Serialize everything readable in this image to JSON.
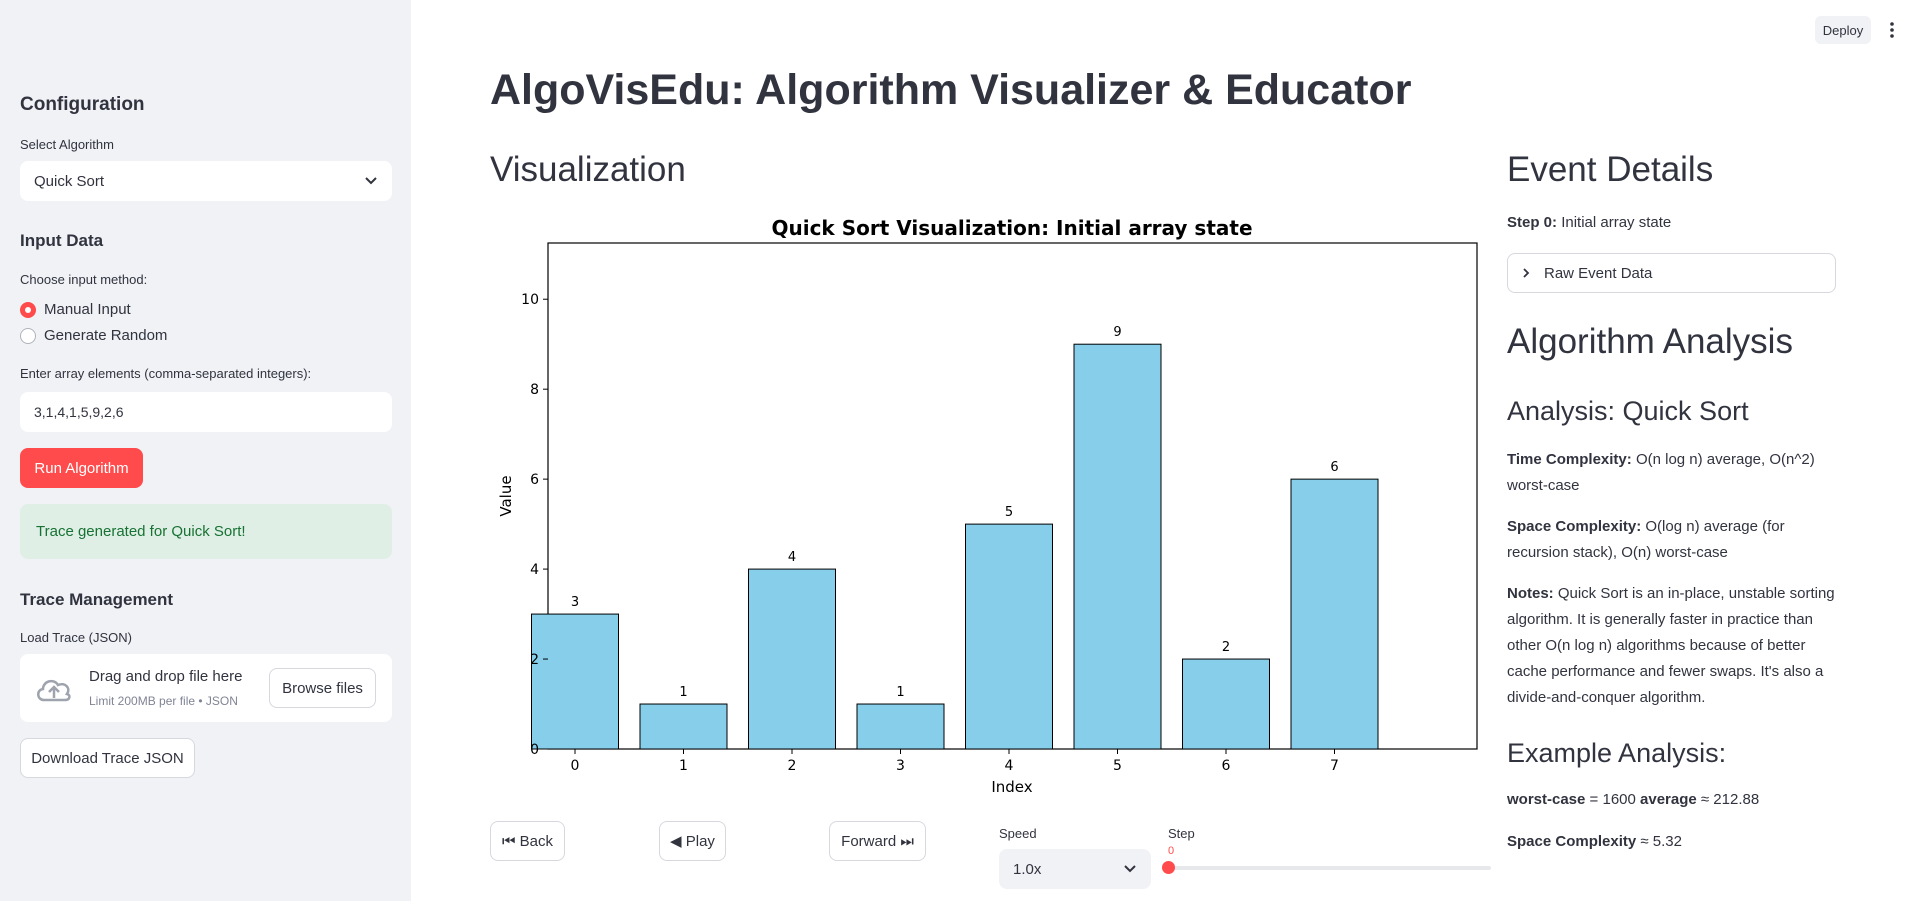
{
  "header": {
    "deploy_label": "Deploy",
    "menu_icon": "more-vert-icon"
  },
  "sidebar": {
    "config_title": "Configuration",
    "algo_label": "Select Algorithm",
    "algo_value": "Quick Sort",
    "input_title": "Input Data",
    "method_label": "Choose input method:",
    "method_options": [
      "Manual Input",
      "Generate Random"
    ],
    "method_selected": "Manual Input",
    "array_label": "Enter array elements (comma-separated integers):",
    "array_value": "3,1,4,1,5,9,2,6",
    "run_label": "Run Algorithm",
    "success_msg": "Trace generated for Quick Sort!",
    "trace_title": "Trace Management",
    "load_label": "Load Trace (JSON)",
    "drop_title": "Drag and drop file here",
    "drop_limit": "Limit 200MB per file • JSON",
    "browse_label": "Browse files",
    "download_label": "Download Trace JSON"
  },
  "main": {
    "title": "AlgoVisEdu: Algorithm Visualizer & Educator",
    "viz_title": "Visualization",
    "controls": {
      "back_label": "⏮ Back",
      "play_label": "◀ Play",
      "forward_label": "Forward ⏭",
      "speed_label": "Speed",
      "speed_value": "1.0x",
      "step_label": "Step",
      "step_value": "0",
      "step_fraction": 0
    }
  },
  "right": {
    "event_title": "Event Details",
    "step_bold": "Step 0:",
    "step_text": "Initial array state",
    "raw_label": "Raw Event Data",
    "analysis_title": "Algorithm Analysis",
    "analysis_sub": "Analysis: Quick Sort",
    "time_bold": "Time Complexity:",
    "time_text": "O(n log n) average, O(n^2) worst-case",
    "space_bold": "Space Complexity:",
    "space_text": "O(log n) average (for recursion stack), O(n) worst-case",
    "notes_bold": "Notes:",
    "notes_text": "Quick Sort is an in-place, unstable sorting algorithm. It is generally faster in practice than other O(n log n) algorithms because of better cache performance and fewer swaps. It's also a divide-and-conquer algorithm.",
    "example_title": "Example Analysis:",
    "ex1_bold1": "worst-case",
    "ex1_text1": "= 1600",
    "ex1_bold2": "average",
    "ex1_text2": "≈ 212.88",
    "ex2_bold": "Space Complexity",
    "ex2_text": "≈ 5.32"
  },
  "chart_data": {
    "type": "bar",
    "title": "Quick Sort Visualization: Initial array state",
    "xlabel": "Index",
    "ylabel": "Value",
    "categories": [
      "0",
      "1",
      "2",
      "3",
      "4",
      "5",
      "6",
      "7"
    ],
    "values": [
      3,
      1,
      4,
      1,
      5,
      9,
      2,
      6
    ],
    "data_labels": [
      "3",
      "1",
      "4",
      "1",
      "5",
      "9",
      "2",
      "6"
    ],
    "yticks": [
      "0",
      "2",
      "4",
      "6",
      "8",
      "10"
    ],
    "ylim": [
      0,
      11.25
    ],
    "bar_color": "#87ceeb",
    "grid": false
  }
}
